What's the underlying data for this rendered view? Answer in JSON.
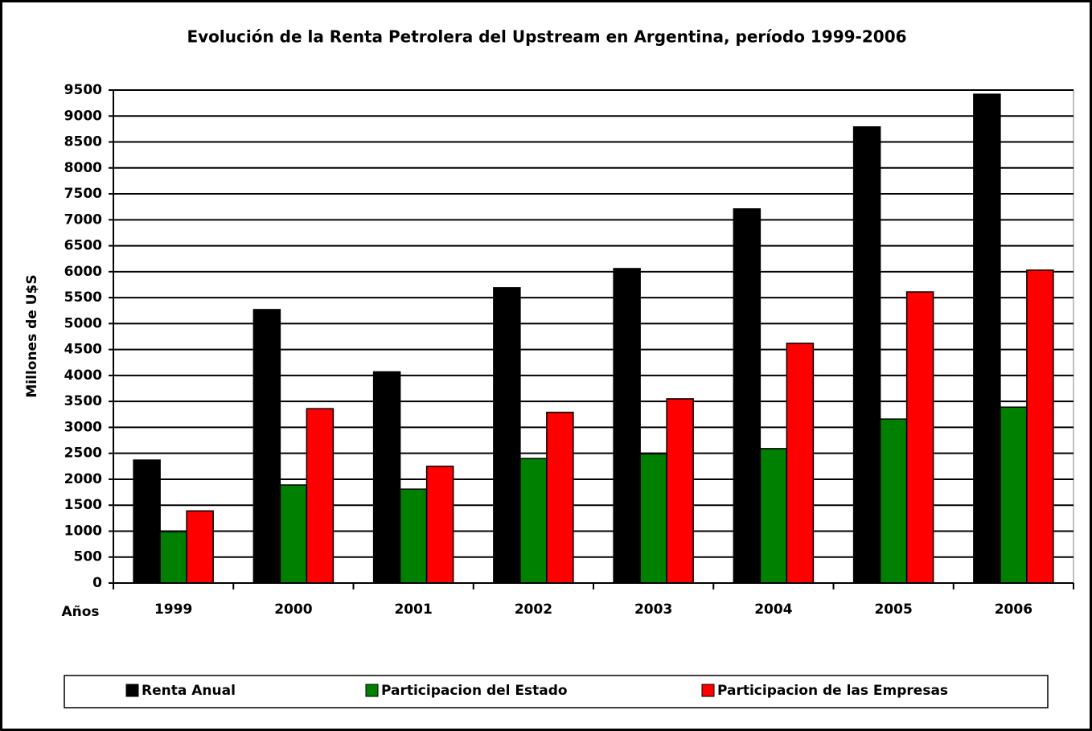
{
  "chart_data": {
    "type": "bar",
    "title": "Evolución de la Renta Petrolera del Upstream en Argentina, período 1999-2006",
    "y_label": "Millones de U$S",
    "x_label": "Años",
    "categories": [
      "1999",
      "2000",
      "2001",
      "2002",
      "2003",
      "2004",
      "2005",
      "2006"
    ],
    "series": [
      {
        "name": "Renta Anual",
        "color": "#000000",
        "values": [
          2370,
          5270,
          4070,
          5690,
          6060,
          7210,
          8790,
          9420
        ]
      },
      {
        "name": "Participacion del Estado",
        "color": "#008000",
        "values": [
          990,
          1890,
          1810,
          2400,
          2490,
          2590,
          3160,
          3390
        ]
      },
      {
        "name": "Participacion de las Empresas",
        "color": "#ff0000",
        "values": [
          1390,
          3360,
          2250,
          3290,
          3550,
          4620,
          5610,
          6030
        ]
      }
    ],
    "ylim": [
      0,
      9500
    ],
    "yticks": [
      0,
      500,
      1000,
      1500,
      2000,
      2500,
      3000,
      3500,
      4000,
      4500,
      5000,
      5500,
      6000,
      6500,
      7000,
      7500,
      8000,
      8500,
      9000,
      9500
    ],
    "grid": true,
    "legend": "bottom"
  }
}
